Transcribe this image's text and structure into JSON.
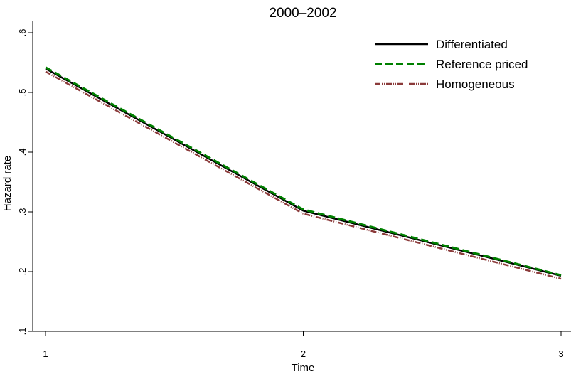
{
  "chart_data": {
    "type": "line",
    "title": "2000–2002",
    "xlabel": "Time",
    "ylabel": "Hazard rate",
    "xlim": [
      1,
      3
    ],
    "ylim": [
      0.1,
      0.6
    ],
    "x_ticks": [
      {
        "value": 1,
        "label": "1"
      },
      {
        "value": 2,
        "label": "2"
      },
      {
        "value": 3,
        "label": "3"
      }
    ],
    "y_ticks": [
      {
        "value": 0.1,
        "label": ".1"
      },
      {
        "value": 0.2,
        "label": ".2"
      },
      {
        "value": 0.3,
        "label": ".3"
      },
      {
        "value": 0.4,
        "label": ".4"
      },
      {
        "value": 0.5,
        "label": ".5"
      },
      {
        "value": 0.6,
        "label": ".6"
      }
    ],
    "x": [
      1,
      2,
      3
    ],
    "series": [
      {
        "name": "Differentiated",
        "values": [
          0.54,
          0.302,
          0.193
        ],
        "color": "#000000",
        "style": "solid"
      },
      {
        "name": "Reference priced",
        "values": [
          0.542,
          0.304,
          0.194
        ],
        "color": "#008000",
        "style": "dashed"
      },
      {
        "name": "Homogeneous",
        "values": [
          0.535,
          0.297,
          0.188
        ],
        "color": "#8b3a3a",
        "style": "dash-dot-dot"
      }
    ],
    "grid": false,
    "legend_position": "top-right"
  }
}
